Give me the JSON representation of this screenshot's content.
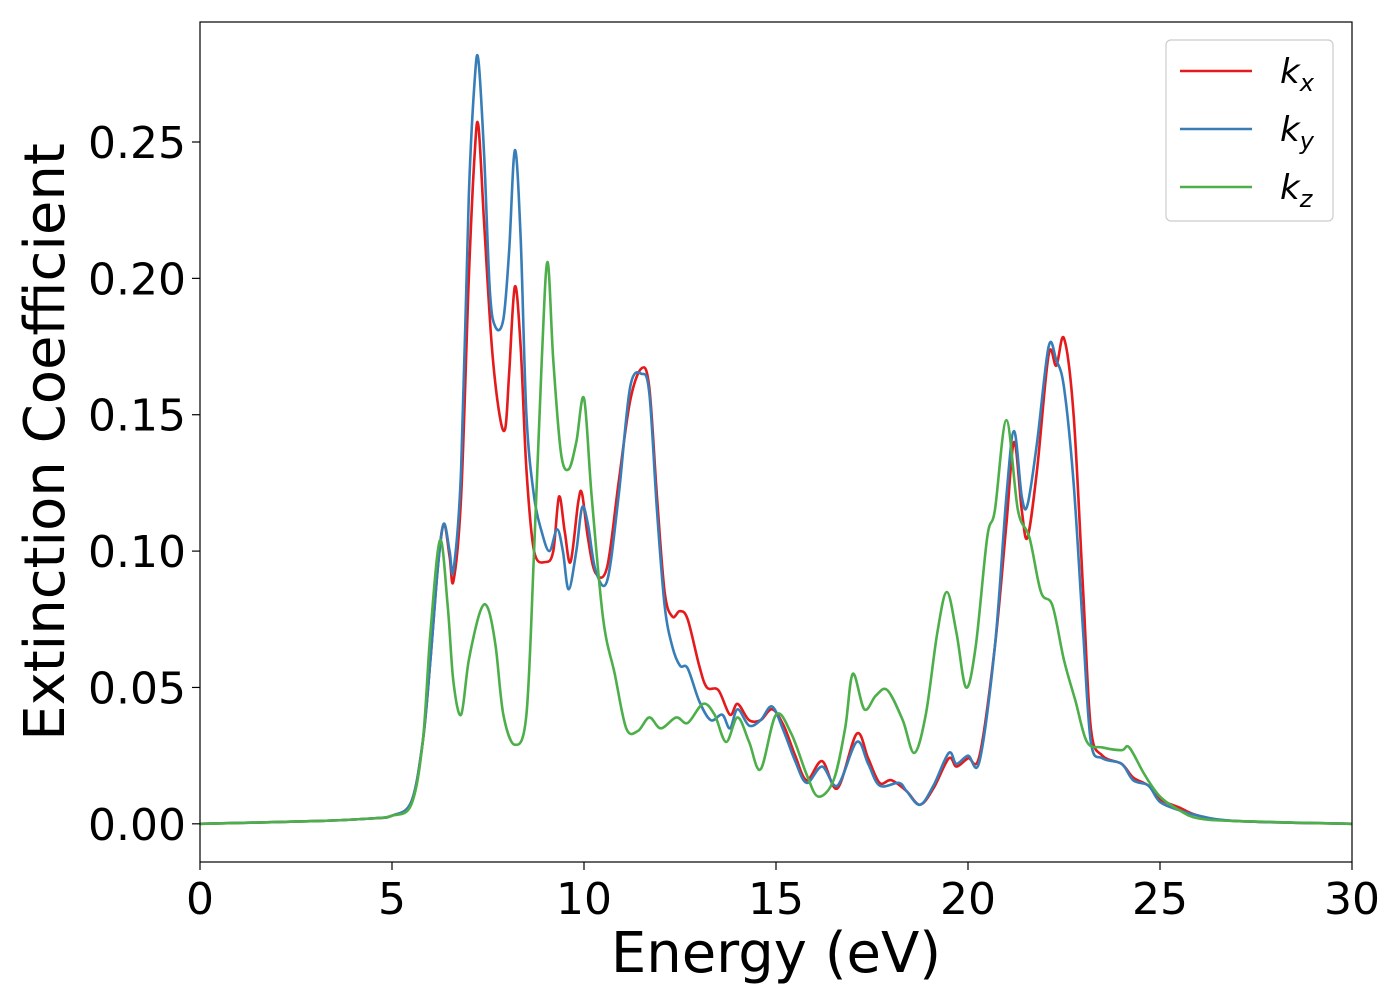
{
  "chart_data": {
    "type": "line",
    "title": "",
    "xlabel": "Energy (eV)",
    "ylabel": "Extinction Coefficient",
    "xlim": [
      0,
      30
    ],
    "ylim": [
      -0.014,
      0.294
    ],
    "xticks": [
      0,
      5,
      10,
      15,
      20,
      25,
      30
    ],
    "xtick_labels": [
      "0",
      "5",
      "10",
      "15",
      "20",
      "25",
      "30"
    ],
    "yticks": [
      0,
      0.05,
      0.1,
      0.15,
      0.2,
      0.25
    ],
    "ytick_labels": [
      "0.00",
      "0.05",
      "0.10",
      "0.15",
      "0.20",
      "0.25"
    ],
    "grid": false,
    "legend_position": "top-right",
    "series": [
      {
        "name": "k",
        "subscript": "x",
        "color": "#e41a1c",
        "points": [
          [
            0,
            0
          ],
          [
            3,
            0.001
          ],
          [
            4.5,
            0.002
          ],
          [
            5.0,
            0.003
          ],
          [
            5.5,
            0.008
          ],
          [
            5.8,
            0.03
          ],
          [
            6.0,
            0.06
          ],
          [
            6.2,
            0.095
          ],
          [
            6.35,
            0.11
          ],
          [
            6.5,
            0.098
          ],
          [
            6.6,
            0.089
          ],
          [
            6.8,
            0.12
          ],
          [
            7.0,
            0.2
          ],
          [
            7.15,
            0.245
          ],
          [
            7.25,
            0.256
          ],
          [
            7.4,
            0.22
          ],
          [
            7.6,
            0.175
          ],
          [
            7.8,
            0.15
          ],
          [
            7.95,
            0.145
          ],
          [
            8.05,
            0.165
          ],
          [
            8.2,
            0.197
          ],
          [
            8.35,
            0.175
          ],
          [
            8.5,
            0.13
          ],
          [
            8.7,
            0.1
          ],
          [
            9.0,
            0.096
          ],
          [
            9.2,
            0.1
          ],
          [
            9.35,
            0.12
          ],
          [
            9.5,
            0.107
          ],
          [
            9.65,
            0.096
          ],
          [
            9.85,
            0.118
          ],
          [
            9.95,
            0.121
          ],
          [
            10.1,
            0.105
          ],
          [
            10.3,
            0.092
          ],
          [
            10.6,
            0.094
          ],
          [
            10.9,
            0.125
          ],
          [
            11.2,
            0.155
          ],
          [
            11.5,
            0.167
          ],
          [
            11.7,
            0.16
          ],
          [
            11.9,
            0.12
          ],
          [
            12.1,
            0.085
          ],
          [
            12.3,
            0.076
          ],
          [
            12.5,
            0.078
          ],
          [
            12.7,
            0.075
          ],
          [
            13.0,
            0.058
          ],
          [
            13.2,
            0.05
          ],
          [
            13.5,
            0.049
          ],
          [
            13.8,
            0.04
          ],
          [
            14.0,
            0.044
          ],
          [
            14.3,
            0.038
          ],
          [
            14.6,
            0.038
          ],
          [
            14.9,
            0.042
          ],
          [
            15.2,
            0.036
          ],
          [
            15.5,
            0.025
          ],
          [
            15.8,
            0.016
          ],
          [
            16.2,
            0.023
          ],
          [
            16.6,
            0.013
          ],
          [
            17.1,
            0.033
          ],
          [
            17.4,
            0.024
          ],
          [
            17.7,
            0.015
          ],
          [
            18.0,
            0.016
          ],
          [
            18.4,
            0.012
          ],
          [
            18.75,
            0.007
          ],
          [
            19.1,
            0.013
          ],
          [
            19.5,
            0.024
          ],
          [
            19.7,
            0.021
          ],
          [
            20.0,
            0.024
          ],
          [
            20.3,
            0.025
          ],
          [
            20.7,
            0.065
          ],
          [
            21.0,
            0.11
          ],
          [
            21.2,
            0.14
          ],
          [
            21.4,
            0.115
          ],
          [
            21.55,
            0.105
          ],
          [
            21.8,
            0.13
          ],
          [
            22.1,
            0.172
          ],
          [
            22.3,
            0.168
          ],
          [
            22.5,
            0.178
          ],
          [
            22.75,
            0.15
          ],
          [
            23.0,
            0.085
          ],
          [
            23.2,
            0.035
          ],
          [
            23.5,
            0.025
          ],
          [
            24.0,
            0.022
          ],
          [
            24.3,
            0.017
          ],
          [
            24.7,
            0.014
          ],
          [
            25.0,
            0.009
          ],
          [
            25.5,
            0.006
          ],
          [
            26.0,
            0.003
          ],
          [
            27,
            0.001
          ],
          [
            30,
            0
          ]
        ]
      },
      {
        "name": "k",
        "subscript": "y",
        "color": "#377eb8",
        "points": [
          [
            0,
            0
          ],
          [
            3,
            0.001
          ],
          [
            4.5,
            0.002
          ],
          [
            5.0,
            0.003
          ],
          [
            5.5,
            0.008
          ],
          [
            5.8,
            0.03
          ],
          [
            6.0,
            0.06
          ],
          [
            6.2,
            0.095
          ],
          [
            6.35,
            0.11
          ],
          [
            6.5,
            0.1
          ],
          [
            6.6,
            0.093
          ],
          [
            6.8,
            0.13
          ],
          [
            7.0,
            0.23
          ],
          [
            7.15,
            0.272
          ],
          [
            7.25,
            0.28
          ],
          [
            7.4,
            0.245
          ],
          [
            7.55,
            0.195
          ],
          [
            7.7,
            0.182
          ],
          [
            7.9,
            0.185
          ],
          [
            8.05,
            0.21
          ],
          [
            8.2,
            0.247
          ],
          [
            8.35,
            0.215
          ],
          [
            8.5,
            0.15
          ],
          [
            8.7,
            0.12
          ],
          [
            8.9,
            0.107
          ],
          [
            9.1,
            0.1
          ],
          [
            9.3,
            0.108
          ],
          [
            9.45,
            0.1
          ],
          [
            9.6,
            0.086
          ],
          [
            9.8,
            0.1
          ],
          [
            9.95,
            0.116
          ],
          [
            10.1,
            0.11
          ],
          [
            10.3,
            0.093
          ],
          [
            10.6,
            0.089
          ],
          [
            10.9,
            0.12
          ],
          [
            11.2,
            0.16
          ],
          [
            11.5,
            0.165
          ],
          [
            11.7,
            0.158
          ],
          [
            11.9,
            0.115
          ],
          [
            12.1,
            0.08
          ],
          [
            12.3,
            0.065
          ],
          [
            12.5,
            0.058
          ],
          [
            12.7,
            0.057
          ],
          [
            13.0,
            0.045
          ],
          [
            13.3,
            0.038
          ],
          [
            13.6,
            0.04
          ],
          [
            13.8,
            0.035
          ],
          [
            14.0,
            0.042
          ],
          [
            14.3,
            0.036
          ],
          [
            14.6,
            0.038
          ],
          [
            14.9,
            0.043
          ],
          [
            15.2,
            0.034
          ],
          [
            15.5,
            0.023
          ],
          [
            15.8,
            0.015
          ],
          [
            16.2,
            0.021
          ],
          [
            16.6,
            0.014
          ],
          [
            17.1,
            0.03
          ],
          [
            17.4,
            0.022
          ],
          [
            17.7,
            0.014
          ],
          [
            18.2,
            0.015
          ],
          [
            18.4,
            0.012
          ],
          [
            18.75,
            0.007
          ],
          [
            19.1,
            0.014
          ],
          [
            19.5,
            0.026
          ],
          [
            19.7,
            0.022
          ],
          [
            20.0,
            0.025
          ],
          [
            20.3,
            0.023
          ],
          [
            20.7,
            0.065
          ],
          [
            21.0,
            0.12
          ],
          [
            21.2,
            0.144
          ],
          [
            21.4,
            0.12
          ],
          [
            21.55,
            0.117
          ],
          [
            21.8,
            0.14
          ],
          [
            22.1,
            0.175
          ],
          [
            22.3,
            0.17
          ],
          [
            22.5,
            0.16
          ],
          [
            22.75,
            0.125
          ],
          [
            23.0,
            0.07
          ],
          [
            23.2,
            0.03
          ],
          [
            23.5,
            0.024
          ],
          [
            24.0,
            0.022
          ],
          [
            24.3,
            0.016
          ],
          [
            24.7,
            0.014
          ],
          [
            25.0,
            0.008
          ],
          [
            25.5,
            0.005
          ],
          [
            26.0,
            0.003
          ],
          [
            27,
            0.001
          ],
          [
            30,
            0
          ]
        ]
      },
      {
        "name": "k",
        "subscript": "z",
        "color": "#4daf4a",
        "points": [
          [
            0,
            0
          ],
          [
            3,
            0.001
          ],
          [
            4.5,
            0.002
          ],
          [
            5.0,
            0.003
          ],
          [
            5.5,
            0.007
          ],
          [
            5.8,
            0.03
          ],
          [
            6.0,
            0.07
          ],
          [
            6.25,
            0.104
          ],
          [
            6.45,
            0.08
          ],
          [
            6.6,
            0.052
          ],
          [
            6.8,
            0.04
          ],
          [
            7.0,
            0.06
          ],
          [
            7.3,
            0.078
          ],
          [
            7.5,
            0.079
          ],
          [
            7.7,
            0.065
          ],
          [
            7.9,
            0.04
          ],
          [
            8.2,
            0.029
          ],
          [
            8.5,
            0.04
          ],
          [
            8.7,
            0.1
          ],
          [
            8.9,
            0.17
          ],
          [
            9.05,
            0.206
          ],
          [
            9.2,
            0.17
          ],
          [
            9.4,
            0.136
          ],
          [
            9.6,
            0.13
          ],
          [
            9.8,
            0.14
          ],
          [
            10.0,
            0.156
          ],
          [
            10.2,
            0.12
          ],
          [
            10.5,
            0.075
          ],
          [
            10.8,
            0.055
          ],
          [
            11.1,
            0.035
          ],
          [
            11.4,
            0.034
          ],
          [
            11.7,
            0.039
          ],
          [
            12.0,
            0.035
          ],
          [
            12.4,
            0.039
          ],
          [
            12.7,
            0.037
          ],
          [
            13.1,
            0.044
          ],
          [
            13.4,
            0.04
          ],
          [
            13.7,
            0.03
          ],
          [
            14.0,
            0.039
          ],
          [
            14.3,
            0.03
          ],
          [
            14.6,
            0.02
          ],
          [
            15.0,
            0.04
          ],
          [
            15.4,
            0.033
          ],
          [
            15.8,
            0.018
          ],
          [
            16.1,
            0.01
          ],
          [
            16.5,
            0.016
          ],
          [
            16.8,
            0.035
          ],
          [
            17.0,
            0.055
          ],
          [
            17.3,
            0.042
          ],
          [
            17.6,
            0.047
          ],
          [
            17.9,
            0.049
          ],
          [
            18.3,
            0.038
          ],
          [
            18.6,
            0.026
          ],
          [
            18.9,
            0.04
          ],
          [
            19.2,
            0.07
          ],
          [
            19.45,
            0.085
          ],
          [
            19.7,
            0.07
          ],
          [
            19.95,
            0.05
          ],
          [
            20.2,
            0.065
          ],
          [
            20.5,
            0.105
          ],
          [
            20.7,
            0.115
          ],
          [
            21.0,
            0.148
          ],
          [
            21.3,
            0.115
          ],
          [
            21.6,
            0.105
          ],
          [
            21.9,
            0.085
          ],
          [
            22.2,
            0.08
          ],
          [
            22.5,
            0.06
          ],
          [
            22.8,
            0.045
          ],
          [
            23.1,
            0.03
          ],
          [
            23.5,
            0.028
          ],
          [
            24.0,
            0.027
          ],
          [
            24.2,
            0.028
          ],
          [
            24.6,
            0.018
          ],
          [
            25.0,
            0.01
          ],
          [
            25.5,
            0.005
          ],
          [
            26.0,
            0.002
          ],
          [
            27,
            0.001
          ],
          [
            30,
            0
          ]
        ]
      }
    ]
  }
}
